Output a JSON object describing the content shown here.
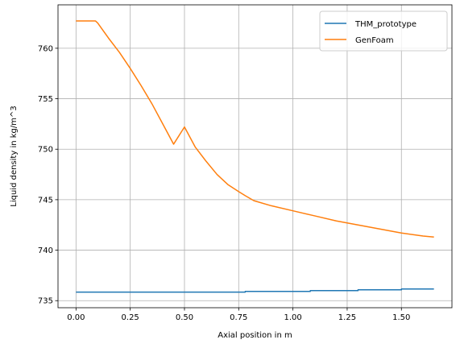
{
  "chart_data": {
    "type": "line",
    "title": "",
    "xlabel": "Axial position in m",
    "ylabel": "Liquid density in kg/m^3",
    "xlim": [
      -0.083,
      1.733
    ],
    "ylim": [
      734.3,
      764.3
    ],
    "xticks": [
      0.0,
      0.25,
      0.5,
      0.75,
      1.0,
      1.25,
      1.5
    ],
    "xtick_labels": [
      "0.00",
      "0.25",
      "0.50",
      "0.75",
      "1.00",
      "1.25",
      "1.50"
    ],
    "yticks": [
      735,
      740,
      745,
      750,
      755,
      760
    ],
    "ytick_labels": [
      "735",
      "740",
      "745",
      "750",
      "755",
      "760"
    ],
    "grid": true,
    "legend_position": "top-right",
    "series": [
      {
        "name": "THM_prototype",
        "color": "#1f77b4",
        "step": true,
        "x": [
          0.0,
          0.78,
          0.78,
          1.08,
          1.08,
          1.3,
          1.3,
          1.5,
          1.5,
          1.65
        ],
        "y": [
          735.85,
          735.85,
          735.92,
          735.92,
          736.0,
          736.0,
          736.08,
          736.08,
          736.15,
          736.15
        ]
      },
      {
        "name": "GenFoam",
        "color": "#ff7f0e",
        "step": false,
        "x": [
          0.0,
          0.09,
          0.1,
          0.15,
          0.2,
          0.25,
          0.3,
          0.35,
          0.4,
          0.45,
          0.5,
          0.55,
          0.6,
          0.65,
          0.7,
          0.75,
          0.78,
          0.82,
          0.9,
          1.0,
          1.1,
          1.2,
          1.3,
          1.4,
          1.5,
          1.6,
          1.65
        ],
        "y": [
          762.7,
          762.7,
          762.5,
          761.0,
          759.6,
          758.0,
          756.3,
          754.5,
          752.5,
          750.5,
          752.2,
          750.2,
          748.8,
          747.5,
          746.5,
          745.8,
          745.4,
          744.9,
          744.4,
          743.9,
          743.4,
          742.9,
          742.5,
          742.1,
          741.7,
          741.4,
          741.3
        ]
      }
    ]
  }
}
